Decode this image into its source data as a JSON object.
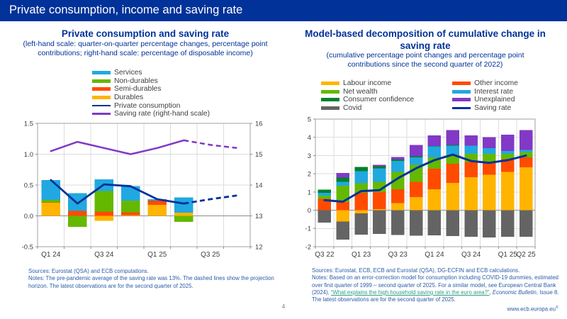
{
  "header": {
    "title": "Private consumption, income and saving rate"
  },
  "panels": {
    "left": {
      "title": "Private consumption and saving rate",
      "subtitle": "(left-hand scale: quarter-on-quarter percentage changes, percentage point contributions; right-hand scale: percentage of disposable income)",
      "sources": "Sources: Eurostat (QSA) and ECB computations.",
      "notes": "Notes: The pre-pandemic average of the saving rate was 13%. The dashed lines show the projection horizon. The latest observations are for the second quarter of 2025."
    },
    "right": {
      "title": "Model-based decomposition of cumulative change in saving rate",
      "subtitle": "(cumulative percentage point changes and percentage point contributions since the second quarter of 2022)",
      "sources": "Sources: Eurostat, ECB, ECB and Eurostat (QSA), DG-ECFIN and ECB calculations.",
      "notes_p1": "Notes: Based on an error-correction model for consumption including COVID-19 dummies, estimated over first quarter of 1999 – second quarter of 2025. For a similar model, see European Central Bank (2024), ",
      "link_text": "“What explains the high household saving rate in the euro area?”",
      "notes_p2": ", ",
      "notes_italic": "Economic Bulletin",
      "notes_p3": ", Issue 8. The latest observations are for the second quarter of 2025."
    }
  },
  "footer": {
    "page_number": "4",
    "website": "www.ecb.europa.eu",
    "copyright": "©"
  },
  "colors": {
    "brand_blue": "#003299",
    "yellow": "#FFB400",
    "orange_red": "#FF4B00",
    "light_green": "#65B800",
    "dark_green": "#00812B",
    "cyan": "#21A8E0",
    "purple": "#8139C6",
    "gray": "#646464",
    "notes_blue": "#2B5CA8",
    "link_teal": "#2E9E82"
  },
  "chart_data": [
    {
      "type": "bar",
      "title": "Private consumption and saving rate",
      "categories": [
        "Q1 24",
        "Q2 24",
        "Q3 24",
        "Q4 24",
        "Q1 25",
        "Q2 25",
        "Q3 25",
        "Q4 25"
      ],
      "x_ticks": [
        {
          "i": 0,
          "label": "Q1 24"
        },
        {
          "i": 2,
          "label": "Q3 24"
        },
        {
          "i": 4,
          "label": "Q1 25"
        },
        {
          "i": 6,
          "label": "Q3 25"
        }
      ],
      "left_axis": {
        "lim": [
          -0.5,
          1.5
        ],
        "ticks": [
          {
            "v": 1.5,
            "label": "1.5"
          },
          {
            "v": 1.0,
            "label": "1.0"
          },
          {
            "v": 0.5,
            "label": "0.5"
          },
          {
            "v": 0.0,
            "label": "0.0"
          },
          {
            "v": -0.5,
            "label": "-0.5"
          }
        ]
      },
      "right_axis": {
        "lim": [
          12,
          16
        ],
        "ticks": [
          {
            "v": 16,
            "label": "16"
          },
          {
            "v": 15,
            "label": "15"
          },
          {
            "v": 14,
            "label": "14"
          },
          {
            "v": 13,
            "label": "13"
          },
          {
            "v": 12,
            "label": "12"
          }
        ]
      },
      "bar_series": [
        {
          "name": "Durables",
          "color": "#FFB400",
          "values": [
            0.21,
            0.0,
            -0.08,
            0.01,
            0.18,
            0.05,
            0,
            0
          ]
        },
        {
          "name": "Semi-durables",
          "color": "#FF4B00",
          "values": [
            0.01,
            0.08,
            0.07,
            0.05,
            0.07,
            0.0,
            0,
            0
          ]
        },
        {
          "name": "Non-durables",
          "color": "#65B800",
          "values": [
            0.04,
            -0.18,
            0.33,
            0.19,
            0.0,
            -0.1,
            0,
            0
          ]
        },
        {
          "name": "Services",
          "color": "#21A8E0",
          "values": [
            0.32,
            0.29,
            0.19,
            0.23,
            0.02,
            0.25,
            0,
            0
          ]
        }
      ],
      "line_series": [
        {
          "name": "Private consumption",
          "color": "#003299",
          "axis": "left",
          "width": 2.8,
          "values": [
            0.58,
            0.2,
            0.51,
            0.48,
            0.27,
            0.2,
            0.27,
            0.33
          ],
          "solid_until_index": 5
        },
        {
          "name": "Saving rate (right-hand scale)",
          "color": "#8139C6",
          "axis": "right",
          "width": 2.5,
          "values": [
            15.1,
            15.4,
            15.2,
            15.0,
            15.2,
            15.45,
            15.3,
            15.2
          ],
          "solid_until_index": 5
        }
      ],
      "legend": [
        {
          "label": "Services",
          "color": "#21A8E0",
          "type": "bar"
        },
        {
          "label": "Non-durables",
          "color": "#65B800",
          "type": "bar"
        },
        {
          "label": "Semi-durables",
          "color": "#FF4B00",
          "type": "bar"
        },
        {
          "label": "Durables",
          "color": "#FFB400",
          "type": "bar"
        },
        {
          "label": "Private consumption",
          "color": "#003299",
          "type": "line"
        },
        {
          "label": "Saving rate (right-hand scale)",
          "color": "#8139C6",
          "type": "line"
        }
      ]
    },
    {
      "type": "bar",
      "title": "Model-based decomposition of cumulative change in saving rate",
      "categories": [
        "Q3 22",
        "Q4 22",
        "Q1 23",
        "Q2 23",
        "Q3 23",
        "Q4 23",
        "Q1 24",
        "Q2 24",
        "Q3 24",
        "Q4 24",
        "Q1 25",
        "Q2 25"
      ],
      "x_ticks": [
        {
          "i": 0,
          "label": "Q3 22"
        },
        {
          "i": 2,
          "label": "Q1 23"
        },
        {
          "i": 4,
          "label": "Q3 23"
        },
        {
          "i": 6,
          "label": "Q1 24"
        },
        {
          "i": 8,
          "label": "Q3 24"
        },
        {
          "i": 10,
          "label": "Q1 25"
        },
        {
          "i": 11,
          "label": "Q2 25"
        }
      ],
      "left_axis": {
        "lim": [
          -2,
          5
        ],
        "ticks": [
          {
            "v": 5,
            "label": "5"
          },
          {
            "v": 4,
            "label": "4"
          },
          {
            "v": 3,
            "label": "3"
          },
          {
            "v": 2,
            "label": "2"
          },
          {
            "v": 1,
            "label": "1"
          },
          {
            "v": 0,
            "label": "0"
          },
          {
            "v": -1,
            "label": "-1"
          },
          {
            "v": -2,
            "label": "-2"
          }
        ]
      },
      "bar_series": [
        {
          "name": "Labour income",
          "color": "#FFB400",
          "values": [
            0.0,
            -0.62,
            -0.18,
            0.06,
            0.4,
            0.72,
            1.15,
            1.5,
            1.82,
            1.95,
            2.1,
            2.35
          ]
        },
        {
          "name": "Other income",
          "color": "#FF4B00",
          "values": [
            0.62,
            0.45,
            0.95,
            0.94,
            0.75,
            0.83,
            1.13,
            1.05,
            0.83,
            0.65,
            0.7,
            0.55
          ]
        },
        {
          "name": "Net wealth",
          "color": "#65B800",
          "values": [
            0.18,
            0.9,
            0.53,
            0.55,
            0.95,
            0.95,
            0.62,
            0.5,
            0.45,
            0.5,
            0.3,
            0.3
          ]
        },
        {
          "name": "Interest rate",
          "color": "#21A8E0",
          "values": [
            0.15,
            0.2,
            0.67,
            0.75,
            0.6,
            0.4,
            0.6,
            0.5,
            0.45,
            0.3,
            0.15,
            0.1
          ]
        },
        {
          "name": "Consumer confidence",
          "color": "#00812B",
          "values": [
            0.18,
            0.25,
            0.23,
            0.12,
            0.08,
            0.05,
            0.03,
            0.03,
            0.0,
            0.0,
            0.0,
            0.0
          ]
        },
        {
          "name": "Unexplained",
          "color": "#8139C6",
          "values": [
            0.0,
            0.25,
            0.0,
            0.08,
            0.14,
            0.63,
            0.57,
            0.82,
            0.55,
            0.6,
            0.9,
            1.1
          ]
        },
        {
          "name": "Covid",
          "color": "#646464",
          "values": [
            -0.68,
            -1.0,
            -1.15,
            -1.3,
            -1.35,
            -1.4,
            -1.38,
            -1.42,
            -1.45,
            -1.5,
            -1.45,
            -1.45
          ]
        }
      ],
      "line_series": [
        {
          "name": "Saving rate",
          "color": "#003299",
          "axis": "left",
          "width": 3,
          "values": [
            0.55,
            0.47,
            1.05,
            1.1,
            1.75,
            2.3,
            2.75,
            3.05,
            2.7,
            2.6,
            2.75,
            3.0
          ]
        }
      ],
      "legend_columns": [
        [
          {
            "label": "Labour income",
            "color": "#FFB400",
            "type": "bar"
          },
          {
            "label": "Net wealth",
            "color": "#65B800",
            "type": "bar"
          },
          {
            "label": "Consumer confidence",
            "color": "#00812B",
            "type": "bar"
          },
          {
            "label": "Covid",
            "color": "#646464",
            "type": "bar"
          }
        ],
        [
          {
            "label": "Other income",
            "color": "#FF4B00",
            "type": "bar"
          },
          {
            "label": "Interest rate",
            "color": "#21A8E0",
            "type": "bar"
          },
          {
            "label": "Unexplained",
            "color": "#8139C6",
            "type": "bar"
          },
          {
            "label": "Saving rate",
            "color": "#003299",
            "type": "line"
          }
        ]
      ]
    }
  ]
}
